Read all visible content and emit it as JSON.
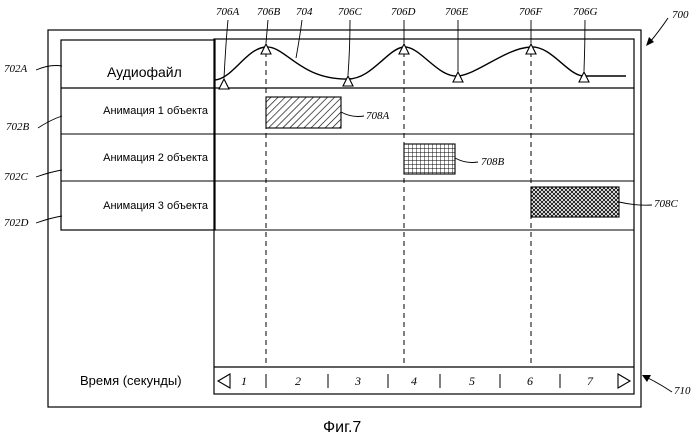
{
  "figure": {
    "ref_outer": "700",
    "caption": "Фиг.7"
  },
  "audio_row": {
    "ref": "702A",
    "label": "Аудиофайл",
    "waveform_ref": "704",
    "markers": [
      "706A",
      "706B",
      "706C",
      "706D",
      "706E",
      "706F",
      "706G"
    ]
  },
  "rows": [
    {
      "ref": "702B",
      "label": "Анимация 1 объекта",
      "block_ref": "708A",
      "pattern": "diagonal-hatch"
    },
    {
      "ref": "702C",
      "label": "Анимация 2 объекта",
      "block_ref": "708B",
      "pattern": "grid"
    },
    {
      "ref": "702D",
      "label": "Анимация 3 объекта",
      "block_ref": "708C",
      "pattern": "crosshatch"
    }
  ],
  "timeline": {
    "ref": "710",
    "label": "Время (секунды)",
    "ticks": [
      "1",
      "2",
      "3",
      "4",
      "5",
      "6",
      "7"
    ],
    "left_arrow_icon": "triangle-left-icon",
    "right_arrow_icon": "triangle-right-icon"
  },
  "colors": {
    "line": "#000000",
    "background": "#ffffff"
  }
}
